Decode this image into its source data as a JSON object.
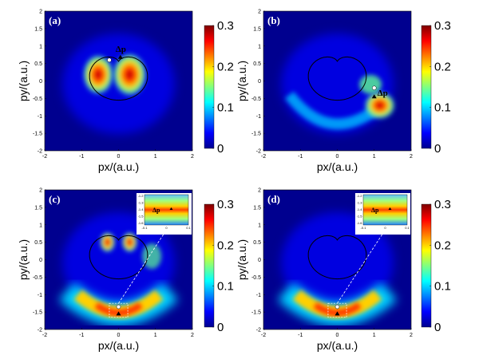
{
  "figure": {
    "panels": [
      {
        "id": "a",
        "label": "(a)",
        "xlabel": "px/(a.u.)",
        "ylabel": "py/(a.u.)",
        "annotation": "Δp",
        "inset": null
      },
      {
        "id": "b",
        "label": "(b)",
        "xlabel": "px/(a.u.)",
        "ylabel": "py/(a.u.)",
        "annotation": "Δp",
        "inset": null
      },
      {
        "id": "c",
        "label": "(c)",
        "xlabel": "px/(a.u.)",
        "ylabel": "py/(a.u.)",
        "annotation": "",
        "inset": {
          "label": "Δp",
          "yticks": [
            "-1.2",
            "-1.3",
            "-1.4",
            "-1.5",
            "-1.6"
          ],
          "xticks": [
            "-0.1",
            "0",
            "0.1"
          ]
        }
      },
      {
        "id": "d",
        "label": "(d)",
        "xlabel": "px/(a.u.)",
        "ylabel": "py/(a.u.)",
        "annotation": "",
        "inset": {
          "label": "Δp",
          "yticks": [
            "-1.2",
            "-1.3",
            "-1.4",
            "-1.5",
            "-1.6"
          ],
          "xticks": [
            "-0.1",
            "0",
            "0.1"
          ]
        }
      }
    ],
    "axis_ticks": [
      "-2",
      "-1.5",
      "-1",
      "-0.5",
      "0",
      "0.5",
      "1",
      "1.5",
      "2"
    ],
    "x_ticks": [
      "-2",
      "-1",
      "0",
      "1",
      "2"
    ],
    "colorbar_ticks": [
      "0",
      "0.1",
      "0.2",
      "0.3"
    ],
    "colormap_stops": [
      "#00008f",
      "#0000ff",
      "#0080ff",
      "#00ffff",
      "#80ff80",
      "#ffff00",
      "#ff8000",
      "#ff0000",
      "#800000"
    ]
  },
  "chart_data": [
    {
      "type": "heatmap",
      "title": "(a)",
      "xlabel": "px/(a.u.)",
      "ylabel": "py/(a.u.)",
      "xlim": [
        -2,
        2
      ],
      "ylim": [
        -2,
        2
      ],
      "zlim": [
        0,
        0.3
      ]
    },
    {
      "type": "heatmap",
      "title": "(b)",
      "xlabel": "px/(a.u.)",
      "ylabel": "py/(a.u.)",
      "xlim": [
        -2,
        2
      ],
      "ylim": [
        -2,
        2
      ],
      "zlim": [
        0,
        0.3
      ]
    },
    {
      "type": "heatmap",
      "title": "(c)",
      "xlabel": "px/(a.u.)",
      "ylabel": "py/(a.u.)",
      "xlim": [
        -2,
        2
      ],
      "ylim": [
        -2,
        2
      ],
      "zlim": [
        0,
        0.3
      ]
    },
    {
      "type": "heatmap",
      "title": "(d)",
      "xlabel": "px/(a.u.)",
      "ylabel": "py/(a.u.)",
      "xlim": [
        -2,
        2
      ],
      "ylim": [
        -2,
        2
      ],
      "zlim": [
        0,
        0.3
      ]
    }
  ]
}
